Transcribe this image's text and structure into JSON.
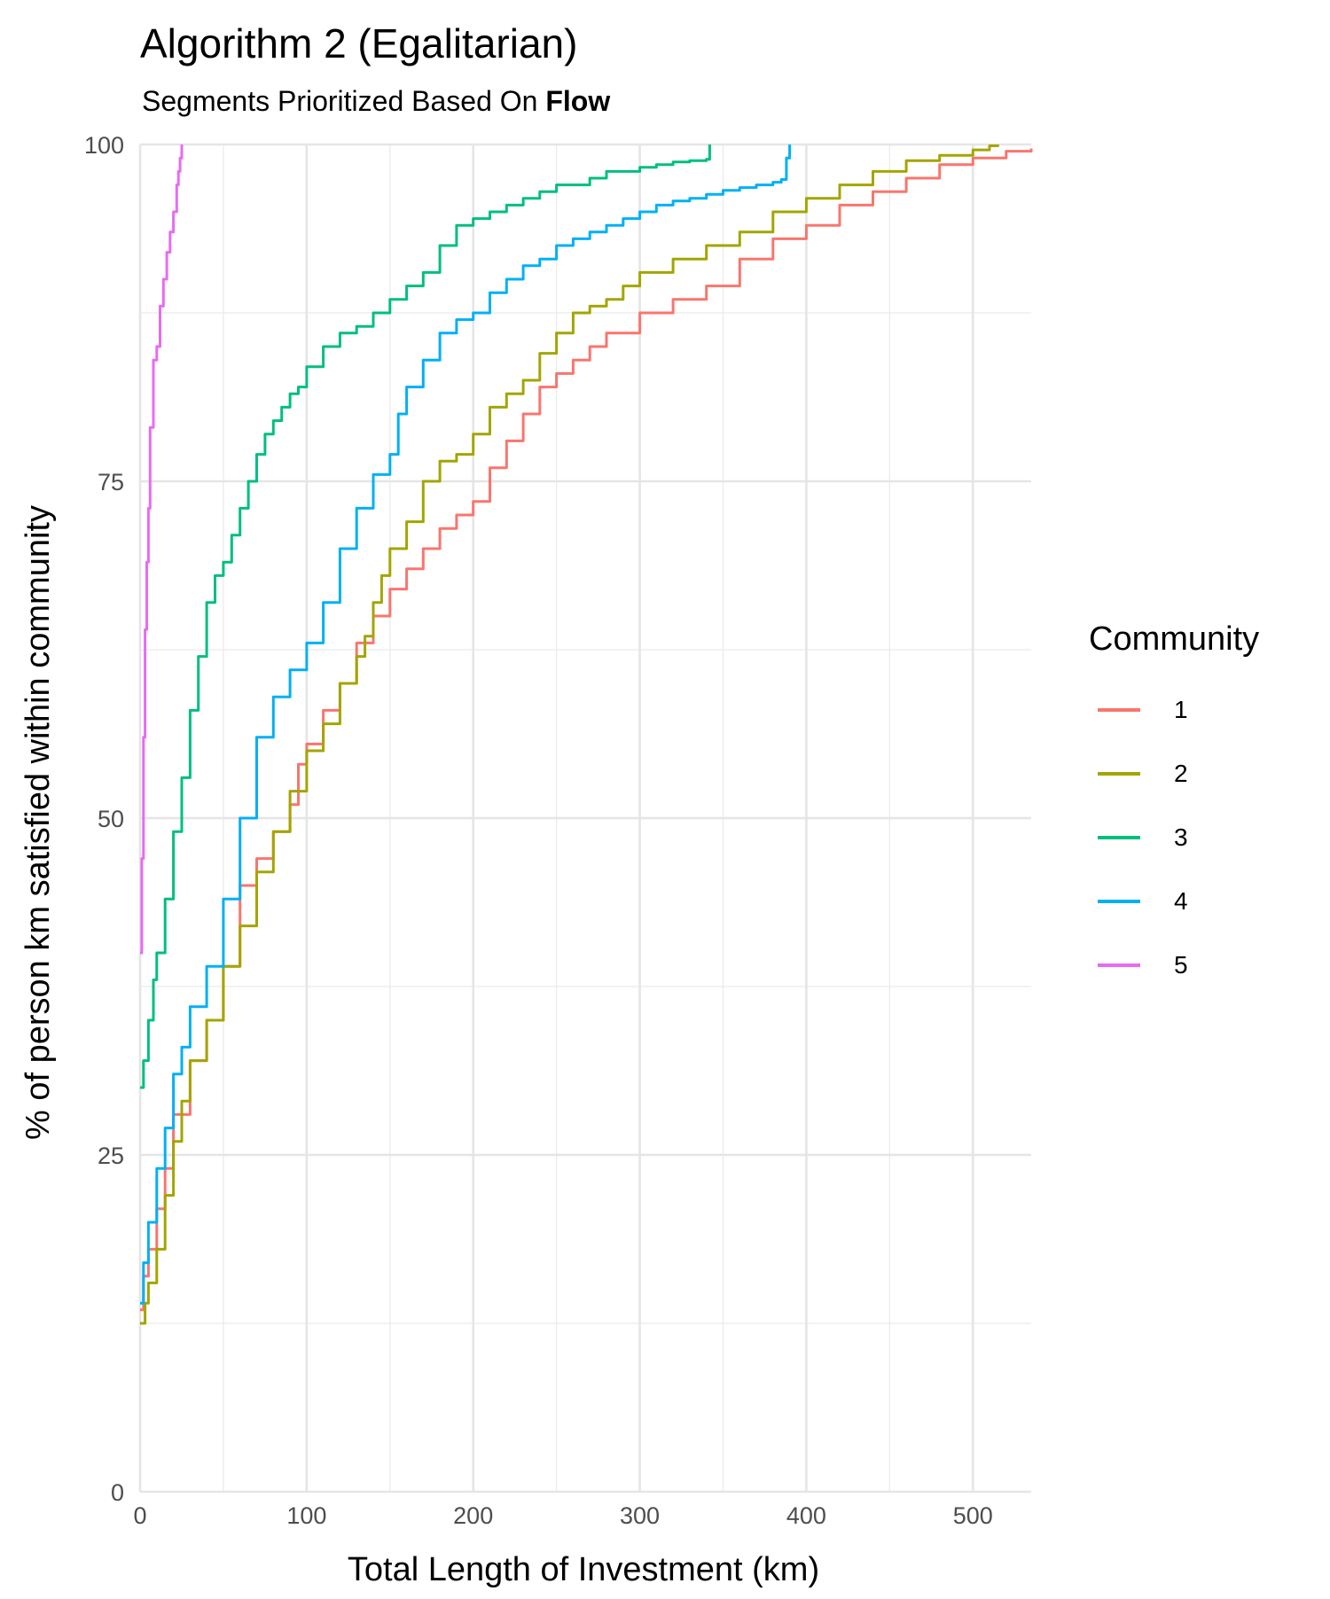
{
  "title": "Algorithm 2 (Egalitarian)",
  "subtitle_prefix": "Segments Prioritized Based On ",
  "subtitle_bold": "Flow",
  "chart_data": {
    "type": "line",
    "title": "Algorithm 2 (Egalitarian)",
    "subtitle": "Segments Prioritized Based On Flow",
    "xlabel": "Total Length of Investment (km)",
    "ylabel": "% of person km satisfied within community",
    "xlim": [
      0,
      535
    ],
    "ylim": [
      0,
      100
    ],
    "x_ticks": [
      0,
      100,
      200,
      300,
      400,
      500
    ],
    "y_ticks": [
      0,
      25,
      50,
      75,
      100
    ],
    "grid": true,
    "legend": {
      "title": "Community",
      "position": "right"
    },
    "series": [
      {
        "name": "1",
        "color": "#F8766D",
        "x": [
          0,
          2,
          5,
          10,
          15,
          20,
          30,
          40,
          50,
          60,
          70,
          80,
          90,
          95,
          100,
          110,
          120,
          130,
          140,
          150,
          160,
          170,
          180,
          190,
          200,
          210,
          220,
          230,
          240,
          250,
          260,
          270,
          280,
          300,
          320,
          340,
          360,
          380,
          400,
          420,
          440,
          460,
          480,
          500,
          520,
          535
        ],
        "y": [
          13.5,
          16,
          18,
          21,
          24,
          28,
          32,
          35,
          39,
          45,
          47,
          49,
          51,
          54,
          55.5,
          58,
          60,
          63,
          65,
          67,
          68.5,
          70,
          71.5,
          72.5,
          73.5,
          76,
          78,
          80,
          82,
          83,
          84,
          85,
          86,
          87.5,
          88.5,
          89.5,
          91.5,
          93,
          94,
          95.5,
          96.5,
          97.5,
          98.5,
          99,
          99.5,
          99.7
        ]
      },
      {
        "name": "2",
        "color": "#A3A500",
        "x": [
          0,
          3,
          5,
          10,
          15,
          20,
          25,
          30,
          40,
          50,
          60,
          70,
          80,
          90,
          100,
          110,
          120,
          130,
          135,
          140,
          145,
          150,
          160,
          170,
          180,
          190,
          200,
          210,
          220,
          230,
          240,
          250,
          260,
          270,
          280,
          290,
          300,
          320,
          340,
          360,
          380,
          400,
          420,
          440,
          460,
          480,
          500,
          510,
          515
        ],
        "y": [
          12.5,
          14,
          15.5,
          18,
          22,
          26,
          29,
          32,
          35,
          39,
          42,
          46,
          49,
          52,
          55,
          57,
          60,
          62,
          63.5,
          66,
          68,
          70,
          72,
          75,
          76.5,
          77,
          78.5,
          80.5,
          81.5,
          82.5,
          84.5,
          86,
          87.5,
          88,
          88.5,
          89.5,
          90.5,
          91.5,
          92.5,
          93.5,
          95,
          96,
          97,
          98,
          98.8,
          99.2,
          99.6,
          99.9,
          100
        ]
      },
      {
        "name": "3",
        "color": "#00BF7D",
        "x": [
          0,
          2,
          5,
          8,
          10,
          15,
          20,
          25,
          30,
          35,
          40,
          45,
          50,
          55,
          60,
          65,
          70,
          75,
          80,
          85,
          90,
          95,
          100,
          110,
          120,
          130,
          140,
          150,
          160,
          170,
          180,
          190,
          200,
          210,
          220,
          230,
          240,
          250,
          260,
          270,
          280,
          290,
          300,
          310,
          320,
          330,
          340,
          342
        ],
        "y": [
          30,
          32,
          35,
          38,
          40,
          44,
          49,
          53,
          58,
          62,
          66,
          68,
          69,
          71,
          73,
          75,
          77,
          78.5,
          79.5,
          80.5,
          81.5,
          82,
          83.5,
          85,
          86,
          86.5,
          87.5,
          88.5,
          89.5,
          90.5,
          92.5,
          94,
          94.5,
          95,
          95.5,
          96,
          96.5,
          97,
          97,
          97.5,
          98,
          98,
          98.3,
          98.5,
          98.7,
          98.8,
          98.9,
          100
        ]
      },
      {
        "name": "4",
        "color": "#00B0F6",
        "x": [
          0,
          2,
          5,
          10,
          15,
          20,
          25,
          30,
          40,
          50,
          60,
          70,
          80,
          90,
          100,
          110,
          120,
          130,
          140,
          150,
          155,
          160,
          170,
          180,
          190,
          200,
          210,
          220,
          230,
          240,
          250,
          260,
          270,
          280,
          290,
          300,
          310,
          320,
          330,
          340,
          350,
          360,
          370,
          380,
          385,
          388,
          390
        ],
        "y": [
          14,
          17,
          20,
          24,
          27,
          31,
          33,
          36,
          39,
          44,
          50,
          56,
          59,
          61,
          63,
          66,
          70,
          73,
          75.5,
          77,
          80,
          82,
          84,
          86,
          87,
          87.5,
          89,
          90,
          91,
          91.5,
          92.5,
          93,
          93.5,
          94,
          94.5,
          95,
          95.5,
          95.8,
          96,
          96.3,
          96.6,
          96.8,
          97,
          97.2,
          97.4,
          99,
          100
        ]
      },
      {
        "name": "5",
        "color": "#E76BF3",
        "x": [
          0,
          1,
          2,
          3,
          4,
          5,
          6,
          8,
          10,
          12,
          14,
          16,
          18,
          20,
          22,
          23,
          24,
          25
        ],
        "y": [
          40,
          47,
          56,
          64,
          69,
          73,
          79,
          84,
          85,
          88,
          90,
          92,
          93.5,
          95,
          97,
          98,
          99,
          100
        ]
      }
    ]
  }
}
